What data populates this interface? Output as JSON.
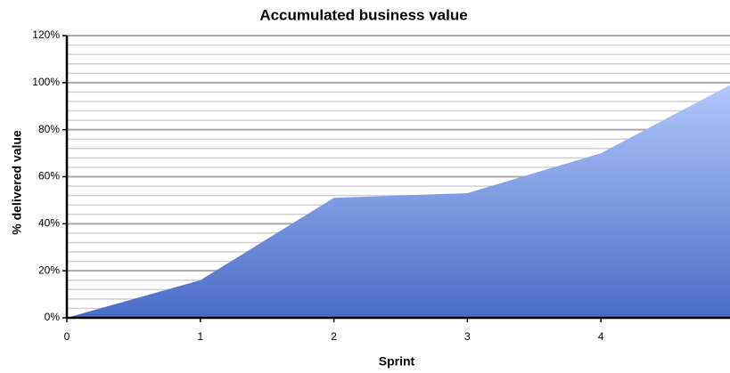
{
  "chart_data": {
    "type": "area",
    "title": "Accumulated business value",
    "xlabel": "Sprint",
    "ylabel": "% delivered value",
    "x": [
      0,
      1,
      2,
      3,
      4,
      5
    ],
    "values": [
      0,
      16,
      51,
      53,
      70,
      100
    ],
    "color": "#6a8ad8",
    "xlim": [
      0,
      5
    ],
    "xticks": [
      0,
      1,
      2,
      3,
      4
    ],
    "ylim": [
      0,
      120
    ],
    "yticks": [
      {
        "value": 0,
        "label": "0%"
      },
      {
        "value": 20,
        "label": "20%"
      },
      {
        "value": 40,
        "label": "40%"
      },
      {
        "value": 60,
        "label": "60%"
      },
      {
        "value": 80,
        "label": "80%"
      },
      {
        "value": 100,
        "label": "100%"
      },
      {
        "value": 120,
        "label": "120%"
      }
    ],
    "grid": true,
    "minor_ticks_per_major": 4
  }
}
